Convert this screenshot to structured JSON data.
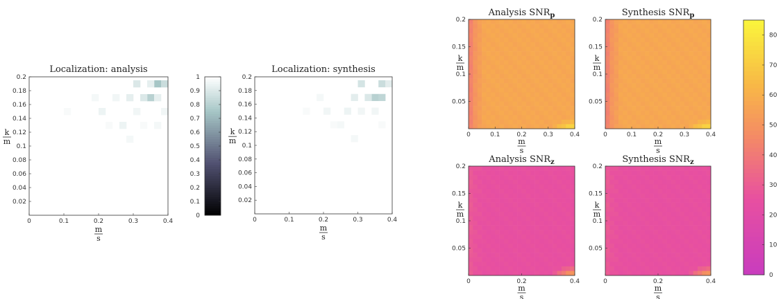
{
  "chart_data": [
    {
      "type": "heatmap",
      "title": "Localization: analysis",
      "xlabel": [
        "m",
        "s"
      ],
      "ylabel": [
        "k",
        "m"
      ],
      "xlim": [
        0,
        0.4
      ],
      "ylim": [
        0,
        0.2
      ],
      "xticks": [
        "0",
        "0.1",
        "0.2",
        "0.3",
        "0.4"
      ],
      "yticks": [
        "0.02",
        "0.04",
        "0.06",
        "0.08",
        "0.1",
        "0.12",
        "0.14",
        "0.16",
        "0.18",
        "0.2"
      ],
      "grid": [
        20,
        20
      ],
      "colormap": "bone",
      "cells": [
        {
          "x": 0.37,
          "y": 0.19,
          "v": 0.75
        },
        {
          "x": 0.35,
          "y": 0.17,
          "v": 0.8
        },
        {
          "x": 0.39,
          "y": 0.19,
          "v": 0.85
        },
        {
          "x": 0.31,
          "y": 0.19,
          "v": 0.9
        },
        {
          "x": 0.33,
          "y": 0.17,
          "v": 0.9
        },
        {
          "x": 0.29,
          "y": 0.17,
          "v": 0.93
        },
        {
          "x": 0.35,
          "y": 0.19,
          "v": 0.93
        },
        {
          "x": 0.37,
          "y": 0.17,
          "v": 0.93
        },
        {
          "x": 0.21,
          "y": 0.15,
          "v": 0.95
        },
        {
          "x": 0.27,
          "y": 0.13,
          "v": 0.95
        },
        {
          "x": 0.31,
          "y": 0.15,
          "v": 0.96
        },
        {
          "x": 0.25,
          "y": 0.17,
          "v": 0.96
        },
        {
          "x": 0.39,
          "y": 0.15,
          "v": 0.96
        },
        {
          "x": 0.19,
          "y": 0.17,
          "v": 0.97
        },
        {
          "x": 0.29,
          "y": 0.11,
          "v": 0.97
        },
        {
          "x": 0.37,
          "y": 0.13,
          "v": 0.97
        },
        {
          "x": 0.23,
          "y": 0.13,
          "v": 0.98
        },
        {
          "x": 0.33,
          "y": 0.13,
          "v": 0.98
        },
        {
          "x": 0.11,
          "y": 0.15,
          "v": 0.98
        }
      ]
    },
    {
      "type": "colorbar",
      "colormap": "bone",
      "range": [
        0,
        1
      ],
      "ticks": [
        "0",
        "0.1",
        "0.2",
        "0.3",
        "0.4",
        "0.5",
        "0.6",
        "0.7",
        "0.8",
        "0.9",
        "1"
      ]
    },
    {
      "type": "heatmap",
      "title": "Localization: synthesis",
      "xlabel": [
        "m",
        "s"
      ],
      "ylabel": [
        "k",
        "m"
      ],
      "xlim": [
        0,
        0.4
      ],
      "ylim": [
        0,
        0.2
      ],
      "xticks": [
        "0",
        "0.1",
        "0.2",
        "0.3",
        "0.4"
      ],
      "yticks": [
        "0.02",
        "0.04",
        "0.06",
        "0.08",
        "0.1",
        "0.12",
        "0.14",
        "0.16",
        "0.18",
        "0.2"
      ],
      "grid": [
        20,
        20
      ],
      "colormap": "bone",
      "cells": [
        {
          "x": 0.35,
          "y": 0.17,
          "v": 0.8
        },
        {
          "x": 0.37,
          "y": 0.17,
          "v": 0.82
        },
        {
          "x": 0.37,
          "y": 0.19,
          "v": 0.85
        },
        {
          "x": 0.31,
          "y": 0.19,
          "v": 0.88
        },
        {
          "x": 0.33,
          "y": 0.17,
          "v": 0.9
        },
        {
          "x": 0.29,
          "y": 0.17,
          "v": 0.92
        },
        {
          "x": 0.39,
          "y": 0.19,
          "v": 0.92
        },
        {
          "x": 0.27,
          "y": 0.15,
          "v": 0.95
        },
        {
          "x": 0.21,
          "y": 0.15,
          "v": 0.96
        },
        {
          "x": 0.31,
          "y": 0.15,
          "v": 0.96
        },
        {
          "x": 0.25,
          "y": 0.13,
          "v": 0.97
        },
        {
          "x": 0.35,
          "y": 0.15,
          "v": 0.96
        },
        {
          "x": 0.19,
          "y": 0.17,
          "v": 0.97
        },
        {
          "x": 0.29,
          "y": 0.11,
          "v": 0.97
        },
        {
          "x": 0.23,
          "y": 0.13,
          "v": 0.98
        },
        {
          "x": 0.37,
          "y": 0.13,
          "v": 0.98
        },
        {
          "x": 0.15,
          "y": 0.15,
          "v": 0.98
        }
      ]
    },
    {
      "type": "heatmap",
      "title": "Analysis SNR",
      "title_sub": "p",
      "ylabel": [
        "k",
        "m"
      ],
      "xlim": [
        0,
        0.4
      ],
      "ylim": [
        0,
        0.2
      ],
      "xticks": [
        "0",
        "0.1",
        "0.2",
        "0.3",
        "0.4"
      ],
      "yticks": [
        "0.05",
        "0.1",
        "0.15",
        "0.2"
      ],
      "xlabel": [
        "m",
        "s"
      ],
      "colormap": "spring",
      "estimate": {
        "left_edge": 40,
        "interior": 57,
        "bottom_right_peak": 80
      }
    },
    {
      "type": "heatmap",
      "title": "Synthesis SNR",
      "title_sub": "p",
      "ylabel": [
        "k",
        "m"
      ],
      "xlim": [
        0,
        0.4
      ],
      "ylim": [
        0,
        0.2
      ],
      "xticks": [
        "0",
        "0.1",
        "0.2",
        "0.3",
        "0.4"
      ],
      "yticks": [
        "0.05",
        "0.1",
        "0.15",
        "0.2"
      ],
      "xlabel": [
        "m",
        "s"
      ],
      "colormap": "spring",
      "estimate": {
        "left_edge": 40,
        "interior": 57,
        "bottom_right_peak": 80
      }
    },
    {
      "type": "heatmap",
      "title": "Analysis SNR",
      "title_sub": "z",
      "ylabel": [
        "k",
        "m"
      ],
      "xlim": [
        0,
        0.4
      ],
      "ylim": [
        0,
        0.2
      ],
      "xticks": [
        "0",
        "0.2",
        "0.4"
      ],
      "yticks": [
        "0.05",
        "0.1",
        "0.15",
        "0.2"
      ],
      "xlabel": [
        "m",
        "s"
      ],
      "colormap": "spring",
      "estimate": {
        "left_edge": 30,
        "interior": 25,
        "bottom_right_peak": 60
      }
    },
    {
      "type": "heatmap",
      "title": "Synthesis SNR",
      "title_sub": "z",
      "ylabel": [
        "k",
        "m"
      ],
      "xlim": [
        0,
        0.4
      ],
      "ylim": [
        0,
        0.2
      ],
      "xticks": [
        "0",
        "0.2",
        "0.4"
      ],
      "yticks": [
        "0.05",
        "0.1",
        "0.15",
        "0.2"
      ],
      "xlabel": [
        "m",
        "s"
      ],
      "colormap": "spring",
      "estimate": {
        "left_edge": 30,
        "interior": 25,
        "bottom_right_peak": 60
      }
    },
    {
      "type": "colorbar",
      "colormap": "spring",
      "range": [
        0,
        85
      ],
      "ticks": [
        "0",
        "10",
        "20",
        "30",
        "40",
        "50",
        "60",
        "70",
        "80"
      ]
    }
  ]
}
